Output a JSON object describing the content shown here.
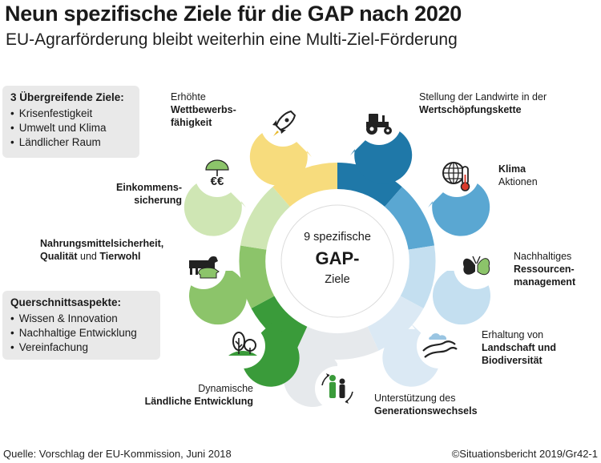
{
  "title": "Neun spezifische Ziele für die GAP nach 2020",
  "subtitle": "EU-Agrarförderung bleibt weiterhin eine Multi-Ziel-Förderung",
  "overarching": {
    "heading": "3 Übergreifende Ziele:",
    "items": [
      "Krisenfestigkeit",
      "Umwelt und Klima",
      "Ländlicher Raum"
    ]
  },
  "crosscutting": {
    "heading": "Querschnittsaspekte:",
    "items": [
      "Wissen & Innovation",
      "Nachhaltige Entwicklung",
      "Vereinfachung"
    ]
  },
  "center": {
    "line1": "9 spezifische",
    "line2": "GAP-",
    "line3": "Ziele"
  },
  "goals": {
    "competitiveness": {
      "l1": "Erhöhte",
      "l2": "Wettbewerbs-",
      "l3": "fähigkeit"
    },
    "value_chain": {
      "l1": "Stellung der Landwirte in der",
      "l2": "Wertschöpfungskette"
    },
    "climate": {
      "l1": "Klima",
      "l2": "Aktionen"
    },
    "resources": {
      "l1": "Nachhaltiges",
      "l2": "Ressourcen-",
      "l3": "management"
    },
    "landscape": {
      "l1": "Erhaltung von",
      "l2": "Landschaft und",
      "l3": "Biodiversität"
    },
    "generational": {
      "l1": "Unterstützung des",
      "l2": "Generationswechsels"
    },
    "rural": {
      "l1": "Dynamische",
      "l2": "Ländliche Entwicklung"
    },
    "food": {
      "l1": "Nahrungsmittelsicherheit,",
      "l2a": "Qualität",
      "l2b": " und ",
      "l2c": "Tierwohl"
    },
    "income": {
      "l1": "Einkommens-",
      "l2": "sicherung",
      "euro": "€€"
    }
  },
  "colors": {
    "blue_dark": "#1f78a8",
    "blue_mid": "#5aa7d2",
    "blue_light": "#c4dff0",
    "blue_pale": "#dbe9f4",
    "grey": "#e6e9ec",
    "green_dark": "#3a9b3a",
    "green_mid": "#8cc46a",
    "green_light": "#cfe6b4",
    "yellow": "#f7dc7d"
  },
  "footer": {
    "source": "Quelle: Vorschlag der EU-Kommission, Juni 2018",
    "credit": "©Situationsbericht 2019/Gr42-1"
  }
}
